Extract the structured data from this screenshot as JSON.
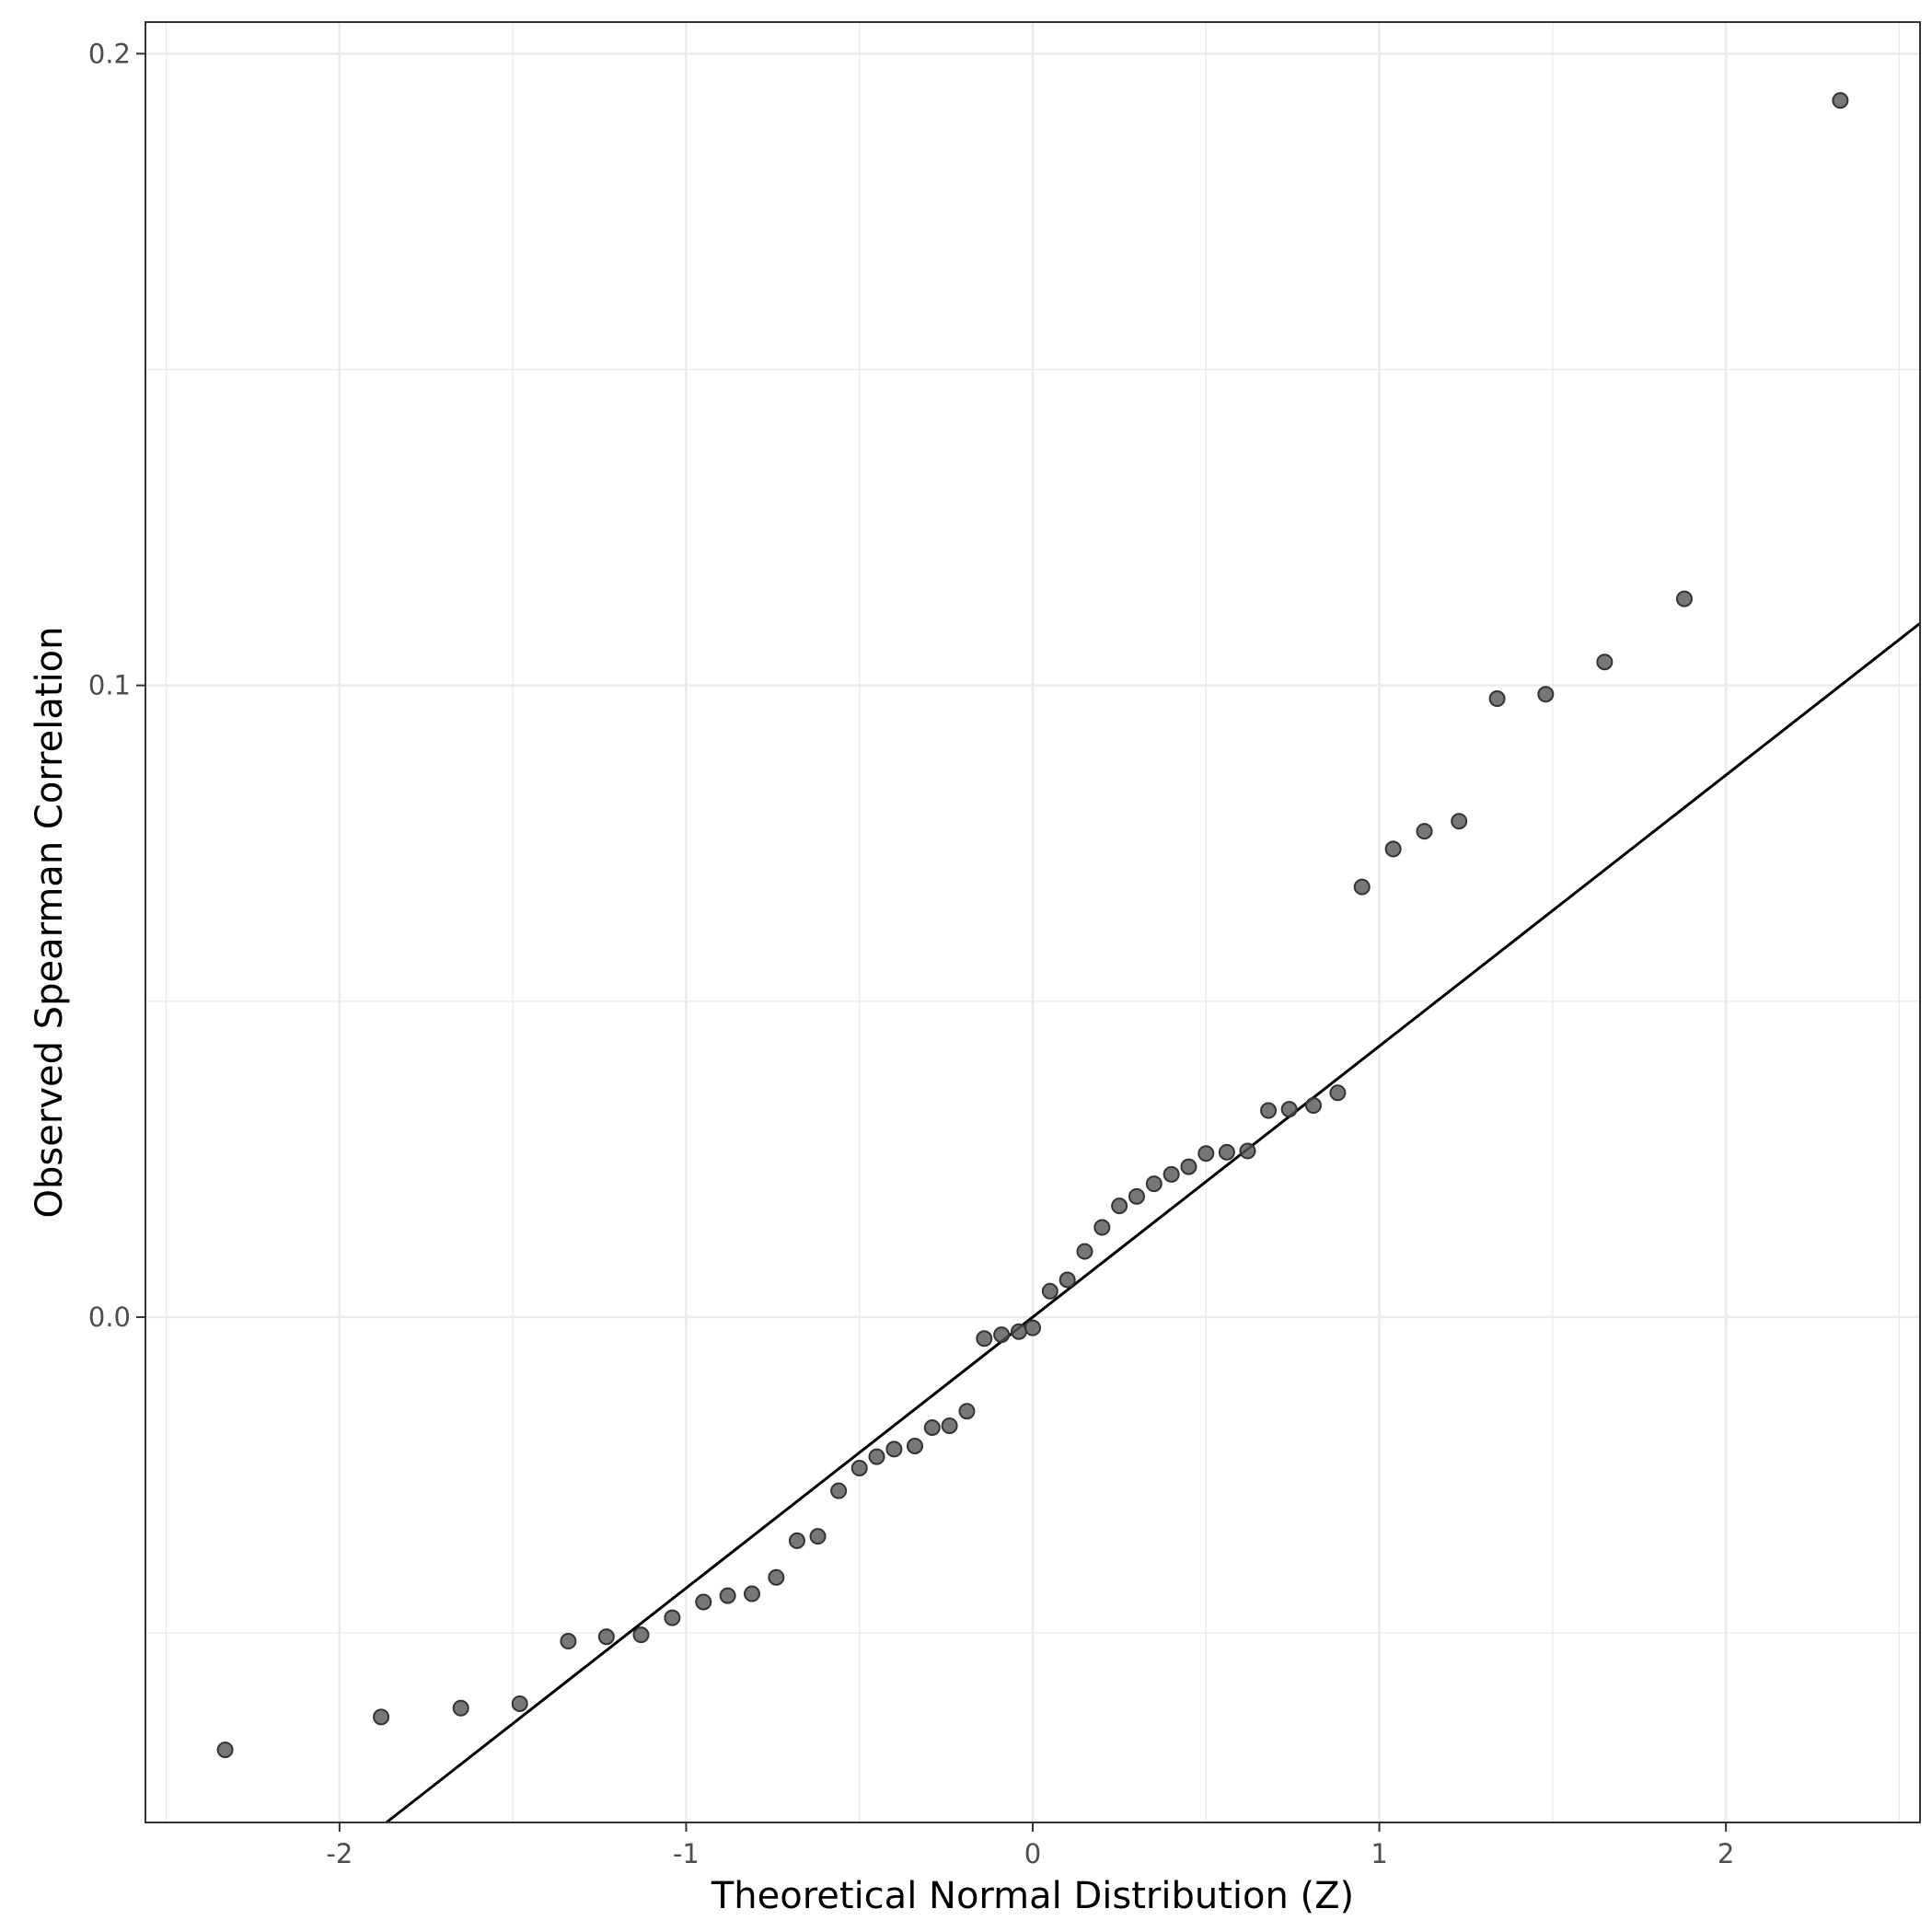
{
  "chart_data": {
    "type": "scatter",
    "title": "",
    "xlabel": "Theoretical Normal Distribution (Z)",
    "ylabel": "Observed Spearman Correlation",
    "xlim": [
      -2.56,
      2.56
    ],
    "ylim": [
      -0.08,
      0.205
    ],
    "x_ticks": [
      -2,
      -1,
      0,
      1,
      2
    ],
    "x_tick_labels": [
      "-2",
      "-1",
      "0",
      "1",
      "2"
    ],
    "y_ticks": [
      0.0,
      0.1,
      0.2
    ],
    "y_tick_labels": [
      "0.0",
      "0.1",
      "0.2"
    ],
    "grid": true,
    "reference_line": {
      "intercept": 0.0,
      "slope": 0.0429
    },
    "point_color": "#555555",
    "line_color": "#000000",
    "points": [
      {
        "x": -2.33,
        "y": -0.0685
      },
      {
        "x": -1.88,
        "y": -0.0633
      },
      {
        "x": -1.65,
        "y": -0.0619
      },
      {
        "x": -1.48,
        "y": -0.0612
      },
      {
        "x": -1.34,
        "y": -0.0513
      },
      {
        "x": -1.23,
        "y": -0.0506
      },
      {
        "x": -1.13,
        "y": -0.0503
      },
      {
        "x": -1.04,
        "y": -0.0476
      },
      {
        "x": -0.95,
        "y": -0.0451
      },
      {
        "x": -0.88,
        "y": -0.0441
      },
      {
        "x": -0.81,
        "y": -0.0438
      },
      {
        "x": -0.74,
        "y": -0.0412
      },
      {
        "x": -0.68,
        "y": -0.0354
      },
      {
        "x": -0.62,
        "y": -0.0347
      },
      {
        "x": -0.56,
        "y": -0.0275
      },
      {
        "x": -0.5,
        "y": -0.0239
      },
      {
        "x": -0.45,
        "y": -0.0221
      },
      {
        "x": -0.4,
        "y": -0.0209
      },
      {
        "x": -0.34,
        "y": -0.0204
      },
      {
        "x": -0.29,
        "y": -0.0175
      },
      {
        "x": -0.24,
        "y": -0.0172
      },
      {
        "x": -0.19,
        "y": -0.0149
      },
      {
        "x": -0.14,
        "y": -0.0034
      },
      {
        "x": -0.09,
        "y": -0.0028
      },
      {
        "x": -0.04,
        "y": -0.0023
      },
      {
        "x": 0.0,
        "y": -0.0017
      },
      {
        "x": 0.05,
        "y": 0.0041
      },
      {
        "x": 0.1,
        "y": 0.0059
      },
      {
        "x": 0.15,
        "y": 0.0104
      },
      {
        "x": 0.2,
        "y": 0.0142
      },
      {
        "x": 0.25,
        "y": 0.0176
      },
      {
        "x": 0.3,
        "y": 0.0191
      },
      {
        "x": 0.35,
        "y": 0.0211
      },
      {
        "x": 0.4,
        "y": 0.0226
      },
      {
        "x": 0.45,
        "y": 0.0238
      },
      {
        "x": 0.5,
        "y": 0.0259
      },
      {
        "x": 0.56,
        "y": 0.0261
      },
      {
        "x": 0.62,
        "y": 0.0263
      },
      {
        "x": 0.68,
        "y": 0.0327
      },
      {
        "x": 0.74,
        "y": 0.0329
      },
      {
        "x": 0.81,
        "y": 0.0335
      },
      {
        "x": 0.88,
        "y": 0.0355
      },
      {
        "x": 0.95,
        "y": 0.0681
      },
      {
        "x": 1.04,
        "y": 0.0741
      },
      {
        "x": 1.13,
        "y": 0.0769
      },
      {
        "x": 1.23,
        "y": 0.0785
      },
      {
        "x": 1.34,
        "y": 0.0979
      },
      {
        "x": 1.48,
        "y": 0.0986
      },
      {
        "x": 1.65,
        "y": 0.1037
      },
      {
        "x": 1.88,
        "y": 0.1137
      },
      {
        "x": 2.33,
        "y": 0.1926
      }
    ]
  }
}
